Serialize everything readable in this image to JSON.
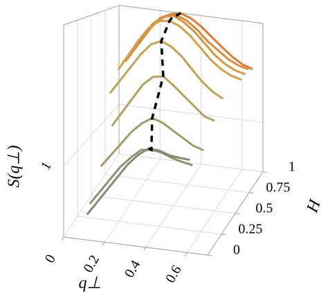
{
  "chart_data": {
    "type": "waterfall3d",
    "xlabel": "q⊥",
    "ylabel": "S(q⊥)",
    "hlabel": "H",
    "xlim": [
      0,
      0.7
    ],
    "xticks": [
      0,
      0.2,
      0.4,
      0.6
    ],
    "hlim": [
      0,
      1
    ],
    "hticks": [
      0,
      0.25,
      0.5,
      0.75,
      1
    ],
    "ylim": [
      0,
      3
    ],
    "yticks": [
      1
    ],
    "grid": true,
    "x": [
      0.05,
      0.1,
      0.15,
      0.2,
      0.25,
      0.3,
      0.35,
      0.4,
      0.45,
      0.5,
      0.55,
      0.6,
      0.65
    ],
    "series": [
      {
        "H": 0.05,
        "color": "#7d8c72",
        "values": [
          null,
          0.3,
          0.5,
          0.7,
          0.9,
          1.1,
          1.25,
          1.36,
          1.35,
          1.3,
          1.28,
          1.27,
          null
        ]
      },
      {
        "H": 0.1,
        "color": "#88926c",
        "values": [
          null,
          0.4,
          0.6,
          0.8,
          1.0,
          1.15,
          1.28,
          1.3,
          1.28,
          1.22,
          1.18,
          1.15,
          null
        ]
      },
      {
        "H": 0.3,
        "color": "#a09b63",
        "values": [
          null,
          0.75,
          0.95,
          1.15,
          1.35,
          1.5,
          1.6,
          1.55,
          1.45,
          1.35,
          1.25,
          1.2,
          null
        ]
      },
      {
        "H": 0.5,
        "color": "#b4a05a",
        "values": [
          null,
          1.2,
          1.45,
          1.7,
          1.95,
          2.1,
          2.13,
          2.0,
          1.85,
          1.7,
          1.55,
          1.5,
          null
        ]
      },
      {
        "H": 0.65,
        "color": "#c6a24c",
        "values": [
          1.6,
          1.85,
          2.1,
          2.35,
          2.55,
          2.63,
          2.55,
          2.4,
          2.2,
          2.0,
          1.85,
          1.75,
          null
        ]
      },
      {
        "H": 0.8,
        "color": "#d2a042",
        "values": [
          1.9,
          2.2,
          2.5,
          2.75,
          2.9,
          2.93,
          2.85,
          2.7,
          2.5,
          2.3,
          2.15,
          2.05,
          2.0
        ]
      },
      {
        "H": 0.87,
        "color": "#d9953a",
        "values": [
          1.95,
          2.25,
          2.55,
          2.8,
          2.95,
          3.0,
          2.9,
          2.75,
          2.55,
          2.35,
          2.2,
          2.1,
          2.05
        ]
      },
      {
        "H": 0.93,
        "color": "#de8a36",
        "values": [
          1.95,
          2.25,
          2.55,
          2.8,
          2.95,
          2.98,
          2.9,
          2.75,
          2.55,
          2.4,
          2.25,
          2.15,
          2.1
        ]
      },
      {
        "H": 1,
        "color": "#e07a30",
        "values": [
          2.0,
          2.3,
          2.6,
          2.85,
          2.95,
          3.0,
          2.92,
          2.78,
          2.6,
          2.42,
          2.25,
          2.12,
          2.05
        ]
      }
    ],
    "peaks": {
      "color": "#000000",
      "H": [
        0.05,
        0.1,
        0.3,
        0.5,
        0.65,
        0.8,
        0.87,
        0.93,
        1
      ],
      "q": [
        0.4,
        0.4,
        0.35,
        0.35,
        0.3,
        0.3,
        0.3,
        0.3,
        0.3
      ],
      "S": [
        1.36,
        1.3,
        1.6,
        2.13,
        2.63,
        2.93,
        3.0,
        2.98,
        3.0
      ]
    }
  }
}
